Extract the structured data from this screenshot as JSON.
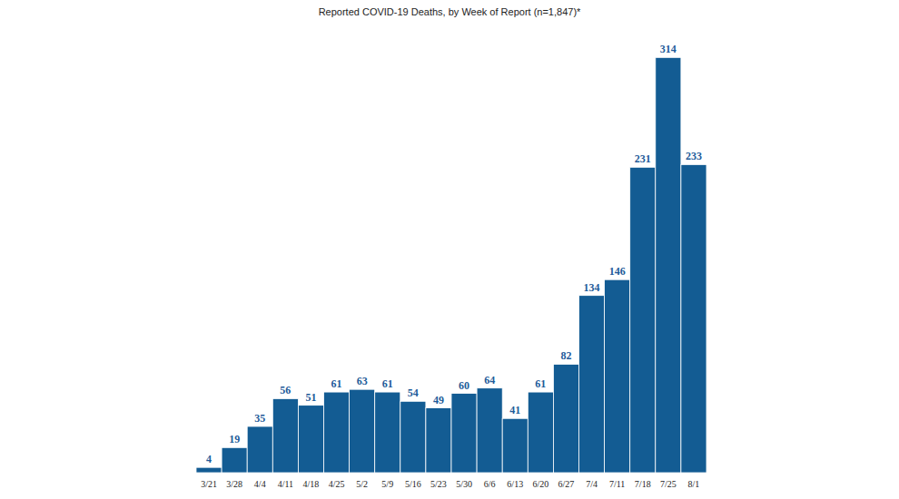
{
  "chart_data": {
    "type": "bar",
    "title": "Reported COVID-19 Deaths, by Week of Report (n=1,847)*",
    "categories": [
      "3/21",
      "3/28",
      "4/4",
      "4/11",
      "4/18",
      "4/25",
      "5/2",
      "5/9",
      "5/16",
      "5/23",
      "5/30",
      "6/6",
      "6/13",
      "6/20",
      "6/27",
      "7/4",
      "7/11",
      "7/18",
      "7/25",
      "8/1"
    ],
    "values": [
      4,
      19,
      35,
      56,
      51,
      61,
      63,
      61,
      54,
      49,
      60,
      64,
      41,
      61,
      82,
      134,
      146,
      231,
      314,
      233
    ],
    "color": "#135c93",
    "ylim": [
      0,
      330
    ],
    "grid": false,
    "data_labels": true,
    "tick_labels": "x"
  }
}
